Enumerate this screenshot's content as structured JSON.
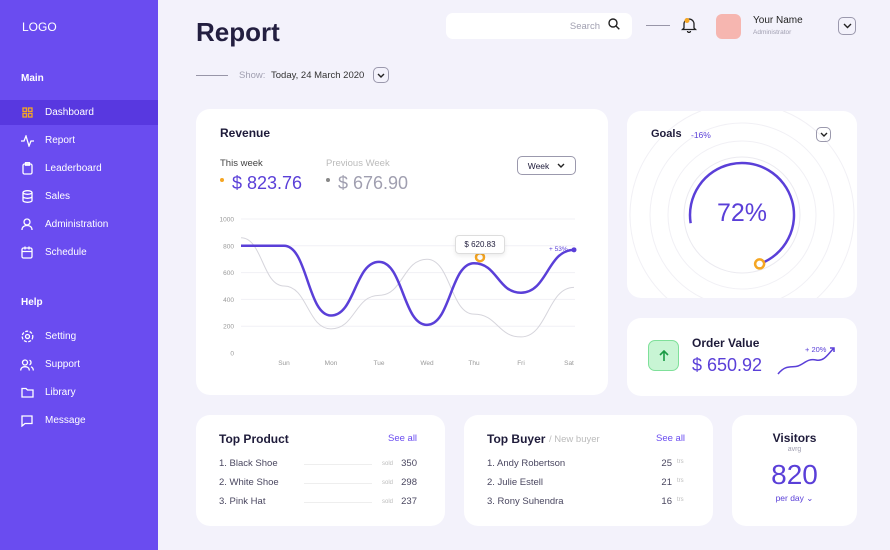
{
  "sidebar": {
    "logo": "LOGO",
    "main_label": "Main",
    "help_label": "Help",
    "main_items": [
      {
        "label": "Dashboard",
        "icon": "grid-icon"
      },
      {
        "label": "Report",
        "icon": "activity-icon"
      },
      {
        "label": "Leaderboard",
        "icon": "clipboard-icon"
      },
      {
        "label": "Sales",
        "icon": "database-icon"
      },
      {
        "label": "Administration",
        "icon": "user-icon"
      },
      {
        "label": "Schedule",
        "icon": "calendar-icon"
      }
    ],
    "help_items": [
      {
        "label": "Setting",
        "icon": "gear-icon"
      },
      {
        "label": "Support",
        "icon": "users-icon"
      },
      {
        "label": "Library",
        "icon": "folder-icon"
      },
      {
        "label": "Message",
        "icon": "message-icon"
      }
    ]
  },
  "header": {
    "title": "Report",
    "search_placeholder": "Search",
    "user_name": "Your Name",
    "user_role": "Administrator",
    "show_label": "Show:",
    "show_date": "Today, 24 March 2020"
  },
  "revenue": {
    "title": "Revenue",
    "this_week_label": "This week",
    "this_week_value": "$ 823.76",
    "prev_week_label": "Previous Week",
    "prev_week_value": "$ 676.90",
    "period": "Week",
    "tooltip": "$ 620.83",
    "change": "+ 53%"
  },
  "chart_data": {
    "type": "line",
    "categories": [
      "",
      "Sun",
      "Mon",
      "Tue",
      "Wed",
      "Thu",
      "Fri",
      "Sat"
    ],
    "ylim": [
      0,
      1000
    ],
    "yticks": [
      "0",
      "200",
      "400",
      "600",
      "800",
      "1000"
    ],
    "series": [
      {
        "name": "This week",
        "color": "#5a3fd8",
        "values": [
          800,
          800,
          280,
          680,
          210,
          670,
          450,
          770
        ]
      },
      {
        "name": "Previous Week",
        "color": "#d6d5dc",
        "values": [
          860,
          500,
          180,
          430,
          700,
          290,
          120,
          490
        ]
      }
    ]
  },
  "goals": {
    "title": "Goals",
    "change": "-16%",
    "percent": "72%",
    "progress": 72
  },
  "order": {
    "title": "Order Value",
    "value": "$ 650.92",
    "change": "+ 20%"
  },
  "top_product": {
    "title": "Top Product",
    "see_all": "See all",
    "unit": "sold",
    "items": [
      {
        "name": "1. Black Shoe",
        "value": "350"
      },
      {
        "name": "2. White Shoe",
        "value": "298"
      },
      {
        "name": "3. Pink Hat",
        "value": "237"
      }
    ]
  },
  "top_buyer": {
    "title": "Top Buyer",
    "subtitle": "/ New buyer",
    "see_all": "See all",
    "unit": "trs",
    "items": [
      {
        "name": "1. Andy Robertson",
        "value": "25"
      },
      {
        "name": "2. Julie Estell",
        "value": "21"
      },
      {
        "name": "3. Rony Suhendra",
        "value": "16"
      }
    ]
  },
  "visitors": {
    "title": "Visitors",
    "sub": "avrg",
    "value": "820",
    "period": "per day"
  }
}
